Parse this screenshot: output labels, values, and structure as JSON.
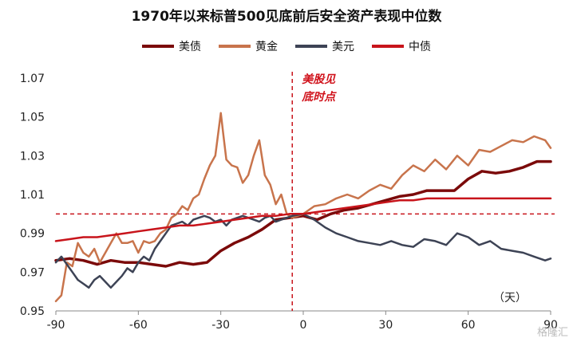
{
  "chart_data": {
    "type": "line",
    "title": "1970年以来标普500见底前后安全资产表现中位数",
    "xlabel": "",
    "ylabel": "",
    "x_unit_label": "（天）",
    "xlim": [
      -90,
      90
    ],
    "ylim": [
      0.95,
      1.07
    ],
    "x_ticks": [
      -90,
      -60,
      -30,
      0,
      30,
      60,
      90
    ],
    "x_tick_labels": [
      "-90",
      "-60",
      "-30",
      "0",
      "30",
      "60",
      "90"
    ],
    "y_ticks": [
      0.95,
      0.97,
      0.99,
      1.01,
      1.03,
      1.05,
      1.07
    ],
    "y_tick_labels": [
      "0.95",
      "0.97",
      "0.99",
      "1.01",
      "1.03",
      "1.05",
      "1.07"
    ],
    "grid": false,
    "legend_position": "top",
    "annotation": {
      "text_line1": "美股见",
      "text_line2": "底时点",
      "x": -4
    },
    "reference_lines": {
      "vertical_x": -4,
      "horizontal_y": 1.0
    },
    "series": [
      {
        "name": "美债",
        "color": "#7b0a0a",
        "width": 3.5,
        "x": [
          -90,
          -85,
          -80,
          -75,
          -70,
          -65,
          -60,
          -55,
          -50,
          -45,
          -40,
          -35,
          -30,
          -25,
          -20,
          -15,
          -10,
          -5,
          0,
          5,
          10,
          15,
          20,
          25,
          30,
          35,
          40,
          45,
          50,
          55,
          60,
          65,
          70,
          75,
          80,
          85,
          90
        ],
        "y": [
          0.976,
          0.977,
          0.976,
          0.974,
          0.976,
          0.975,
          0.975,
          0.974,
          0.973,
          0.975,
          0.974,
          0.975,
          0.981,
          0.985,
          0.988,
          0.992,
          0.997,
          0.998,
          0.999,
          0.997,
          1.0,
          1.002,
          1.003,
          1.005,
          1.007,
          1.009,
          1.01,
          1.012,
          1.012,
          1.012,
          1.018,
          1.022,
          1.021,
          1.022,
          1.024,
          1.027,
          1.027
        ]
      },
      {
        "name": "黄金",
        "color": "#c8744c",
        "width": 2.5,
        "x": [
          -90,
          -88,
          -86,
          -84,
          -82,
          -80,
          -78,
          -76,
          -74,
          -72,
          -70,
          -68,
          -66,
          -64,
          -62,
          -60,
          -58,
          -56,
          -54,
          -52,
          -50,
          -48,
          -46,
          -44,
          -42,
          -40,
          -38,
          -36,
          -34,
          -32,
          -30,
          -29,
          -28,
          -26,
          -24,
          -22,
          -20,
          -18,
          -16,
          -14,
          -12,
          -10,
          -8,
          -6,
          -4,
          -2,
          0,
          4,
          8,
          12,
          16,
          20,
          24,
          28,
          32,
          36,
          40,
          44,
          48,
          52,
          56,
          60,
          64,
          68,
          72,
          76,
          80,
          84,
          88,
          90
        ],
        "y": [
          0.955,
          0.958,
          0.975,
          0.973,
          0.985,
          0.98,
          0.978,
          0.982,
          0.975,
          0.98,
          0.985,
          0.99,
          0.985,
          0.985,
          0.986,
          0.98,
          0.986,
          0.985,
          0.986,
          0.99,
          0.992,
          0.998,
          1.0,
          1.004,
          1.002,
          1.008,
          1.01,
          1.018,
          1.025,
          1.03,
          1.052,
          1.04,
          1.028,
          1.025,
          1.024,
          1.016,
          1.02,
          1.03,
          1.038,
          1.02,
          1.015,
          1.005,
          1.01,
          1.0,
          0.998,
          0.999,
          1.0,
          1.004,
          1.005,
          1.008,
          1.01,
          1.008,
          1.012,
          1.015,
          1.013,
          1.02,
          1.025,
          1.022,
          1.028,
          1.023,
          1.03,
          1.025,
          1.033,
          1.032,
          1.035,
          1.038,
          1.037,
          1.04,
          1.038,
          1.034
        ]
      },
      {
        "name": "美元",
        "color": "#3d4355",
        "width": 2.5,
        "x": [
          -90,
          -88,
          -86,
          -84,
          -82,
          -80,
          -78,
          -76,
          -74,
          -72,
          -70,
          -68,
          -66,
          -64,
          -62,
          -60,
          -58,
          -56,
          -54,
          -52,
          -50,
          -48,
          -46,
          -44,
          -42,
          -40,
          -38,
          -36,
          -34,
          -32,
          -30,
          -28,
          -26,
          -24,
          -22,
          -20,
          -18,
          -16,
          -14,
          -12,
          -10,
          -8,
          -6,
          -4,
          0,
          4,
          8,
          12,
          16,
          20,
          24,
          28,
          32,
          36,
          40,
          44,
          48,
          52,
          56,
          60,
          64,
          68,
          72,
          76,
          80,
          84,
          88,
          90
        ],
        "y": [
          0.975,
          0.978,
          0.974,
          0.97,
          0.966,
          0.964,
          0.962,
          0.966,
          0.968,
          0.965,
          0.962,
          0.965,
          0.968,
          0.972,
          0.97,
          0.975,
          0.978,
          0.976,
          0.982,
          0.986,
          0.99,
          0.994,
          0.995,
          0.996,
          0.994,
          0.997,
          0.998,
          0.999,
          0.998,
          0.996,
          0.997,
          0.994,
          0.997,
          0.998,
          0.999,
          0.998,
          0.997,
          0.996,
          0.998,
          0.999,
          0.996,
          0.997,
          0.998,
          0.999,
          1.0,
          0.997,
          0.993,
          0.99,
          0.988,
          0.986,
          0.985,
          0.984,
          0.986,
          0.984,
          0.983,
          0.987,
          0.986,
          0.984,
          0.99,
          0.988,
          0.984,
          0.986,
          0.982,
          0.981,
          0.98,
          0.978,
          0.976,
          0.977
        ]
      },
      {
        "name": "中债",
        "color": "#c8141b",
        "width": 2.5,
        "x": [
          -90,
          -85,
          -80,
          -75,
          -70,
          -65,
          -60,
          -55,
          -50,
          -45,
          -40,
          -35,
          -30,
          -25,
          -20,
          -15,
          -10,
          -5,
          0,
          5,
          10,
          15,
          20,
          25,
          30,
          35,
          40,
          45,
          50,
          55,
          60,
          65,
          70,
          75,
          80,
          85,
          90
        ],
        "y": [
          0.986,
          0.987,
          0.988,
          0.988,
          0.989,
          0.99,
          0.991,
          0.992,
          0.993,
          0.994,
          0.994,
          0.995,
          0.996,
          0.997,
          0.998,
          0.999,
          0.999,
          1.0,
          1.0,
          1.001,
          1.002,
          1.003,
          1.004,
          1.005,
          1.006,
          1.007,
          1.007,
          1.008,
          1.008,
          1.008,
          1.008,
          1.008,
          1.008,
          1.008,
          1.008,
          1.008,
          1.008
        ]
      }
    ]
  },
  "watermark": "格隆汇"
}
